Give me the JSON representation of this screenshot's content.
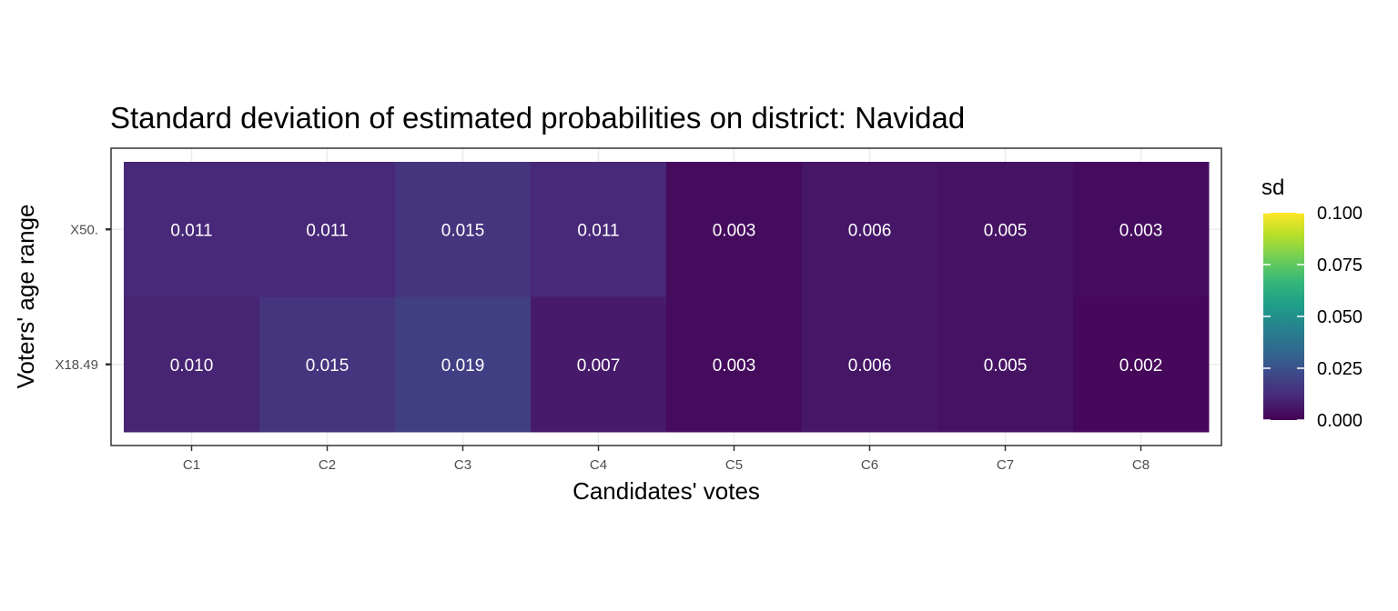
{
  "chart_data": {
    "type": "heatmap",
    "title": "Standard deviation of estimated probabilities on district: Navidad",
    "xlabel": "Candidates' votes",
    "ylabel": "Voters' age range",
    "x_categories": [
      "C1",
      "C2",
      "C3",
      "C4",
      "C5",
      "C6",
      "C7",
      "C8"
    ],
    "y_categories": [
      "X50.",
      "X18.49"
    ],
    "values": [
      [
        0.011,
        0.011,
        0.015,
        0.011,
        0.003,
        0.006,
        0.005,
        0.003
      ],
      [
        0.01,
        0.015,
        0.019,
        0.007,
        0.003,
        0.006,
        0.005,
        0.002
      ]
    ],
    "value_labels": [
      [
        "0.011",
        "0.011",
        "0.015",
        "0.011",
        "0.003",
        "0.006",
        "0.005",
        "0.003"
      ],
      [
        "0.010",
        "0.015",
        "0.019",
        "0.007",
        "0.003",
        "0.006",
        "0.005",
        "0.002"
      ]
    ],
    "legend": {
      "title": "sd",
      "range": [
        0,
        0.1
      ],
      "ticks": [
        0.1,
        0.075,
        0.05,
        0.025,
        0.0
      ],
      "tick_labels": [
        "0.100",
        "0.075",
        "0.050",
        "0.025",
        "0.000"
      ],
      "palette": "viridis",
      "placement": "right"
    },
    "grid": true
  },
  "colors": {
    "viridis": [
      "#440154",
      "#482878",
      "#3e4989",
      "#31688e",
      "#26828e",
      "#1f9e89",
      "#35b779",
      "#6ece58",
      "#b5de2b",
      "#fde725"
    ],
    "panel_border": "#333333",
    "grid": "#ebebeb",
    "cell_text": "#ffffff"
  }
}
